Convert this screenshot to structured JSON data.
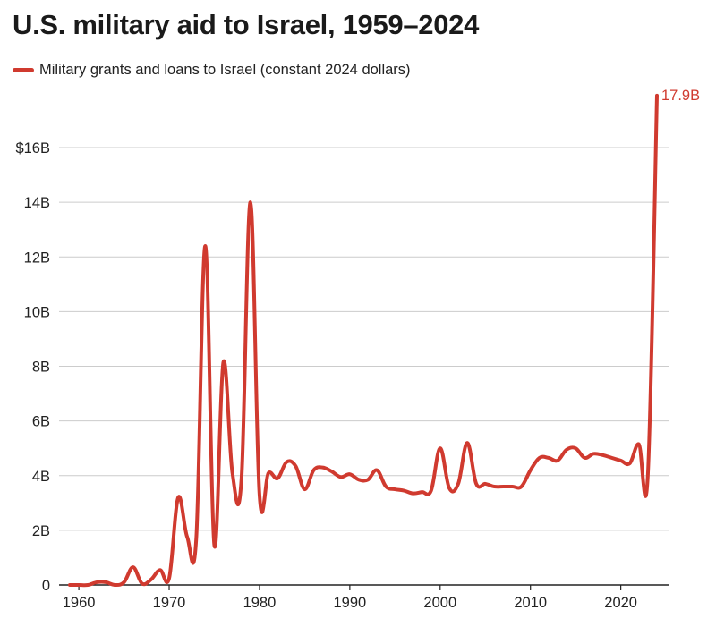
{
  "title": "U.S. military aid to Israel, 1959–2024",
  "legend": {
    "label": "Military grants and loans to Israel (constant 2024 dollars)"
  },
  "colors": {
    "series": "#d03a2f",
    "grid": "#cccccc",
    "axis": "#222222",
    "text": "#222222"
  },
  "chart_data": {
    "type": "line",
    "title": "U.S. military aid to Israel, 1959–2024",
    "xlabel": "",
    "ylabel": "",
    "xlim": [
      1959,
      2024
    ],
    "ylim": [
      0,
      18
    ],
    "grid": "horizontal",
    "legend_position": "top-left",
    "y_ticks": [
      {
        "value": 0,
        "label": "0"
      },
      {
        "value": 2,
        "label": "2B"
      },
      {
        "value": 4,
        "label": "4B"
      },
      {
        "value": 6,
        "label": "6B"
      },
      {
        "value": 8,
        "label": "8B"
      },
      {
        "value": 10,
        "label": "10B"
      },
      {
        "value": 12,
        "label": "12B"
      },
      {
        "value": 14,
        "label": "14B"
      },
      {
        "value": 16,
        "label": "$16B"
      }
    ],
    "x_ticks": [
      {
        "value": 1960,
        "label": "1960"
      },
      {
        "value": 1970,
        "label": "1970"
      },
      {
        "value": 1980,
        "label": "1980"
      },
      {
        "value": 1990,
        "label": "1990"
      },
      {
        "value": 2000,
        "label": "2000"
      },
      {
        "value": 2010,
        "label": "2010"
      },
      {
        "value": 2020,
        "label": "2020"
      }
    ],
    "series": [
      {
        "name": "Military grants and loans to Israel (constant 2024 dollars)",
        "unit": "billion 2024 dollars",
        "x": [
          1959,
          1960,
          1961,
          1962,
          1963,
          1964,
          1965,
          1966,
          1967,
          1968,
          1969,
          1970,
          1971,
          1972,
          1973,
          1974,
          1975,
          1976,
          1977,
          1978,
          1979,
          1980,
          1981,
          1982,
          1983,
          1984,
          1985,
          1986,
          1987,
          1988,
          1989,
          1990,
          1991,
          1992,
          1993,
          1994,
          1995,
          1996,
          1997,
          1998,
          1999,
          2000,
          2001,
          2002,
          2003,
          2004,
          2005,
          2006,
          2007,
          2008,
          2009,
          2010,
          2011,
          2012,
          2013,
          2014,
          2015,
          2016,
          2017,
          2018,
          2019,
          2020,
          2021,
          2022,
          2023,
          2024
        ],
        "y": [
          0.0,
          0.0,
          0.0,
          0.1,
          0.1,
          0.0,
          0.1,
          0.65,
          0.05,
          0.2,
          0.55,
          0.25,
          3.2,
          1.75,
          1.7,
          12.4,
          1.45,
          8.15,
          4.1,
          3.85,
          14.0,
          3.3,
          4.1,
          3.9,
          4.5,
          4.35,
          3.5,
          4.2,
          4.3,
          4.15,
          3.95,
          4.05,
          3.85,
          3.85,
          4.2,
          3.6,
          3.5,
          3.45,
          3.35,
          3.4,
          3.45,
          5.0,
          3.55,
          3.7,
          5.2,
          3.7,
          3.7,
          3.6,
          3.6,
          3.6,
          3.6,
          4.2,
          4.65,
          4.65,
          4.55,
          4.95,
          5.0,
          4.65,
          4.8,
          4.75,
          4.65,
          4.55,
          4.45,
          5.15,
          4.05,
          17.9
        ]
      }
    ],
    "annotations": [
      {
        "x": 2024,
        "y": 17.9,
        "text": "17.9B"
      }
    ]
  }
}
